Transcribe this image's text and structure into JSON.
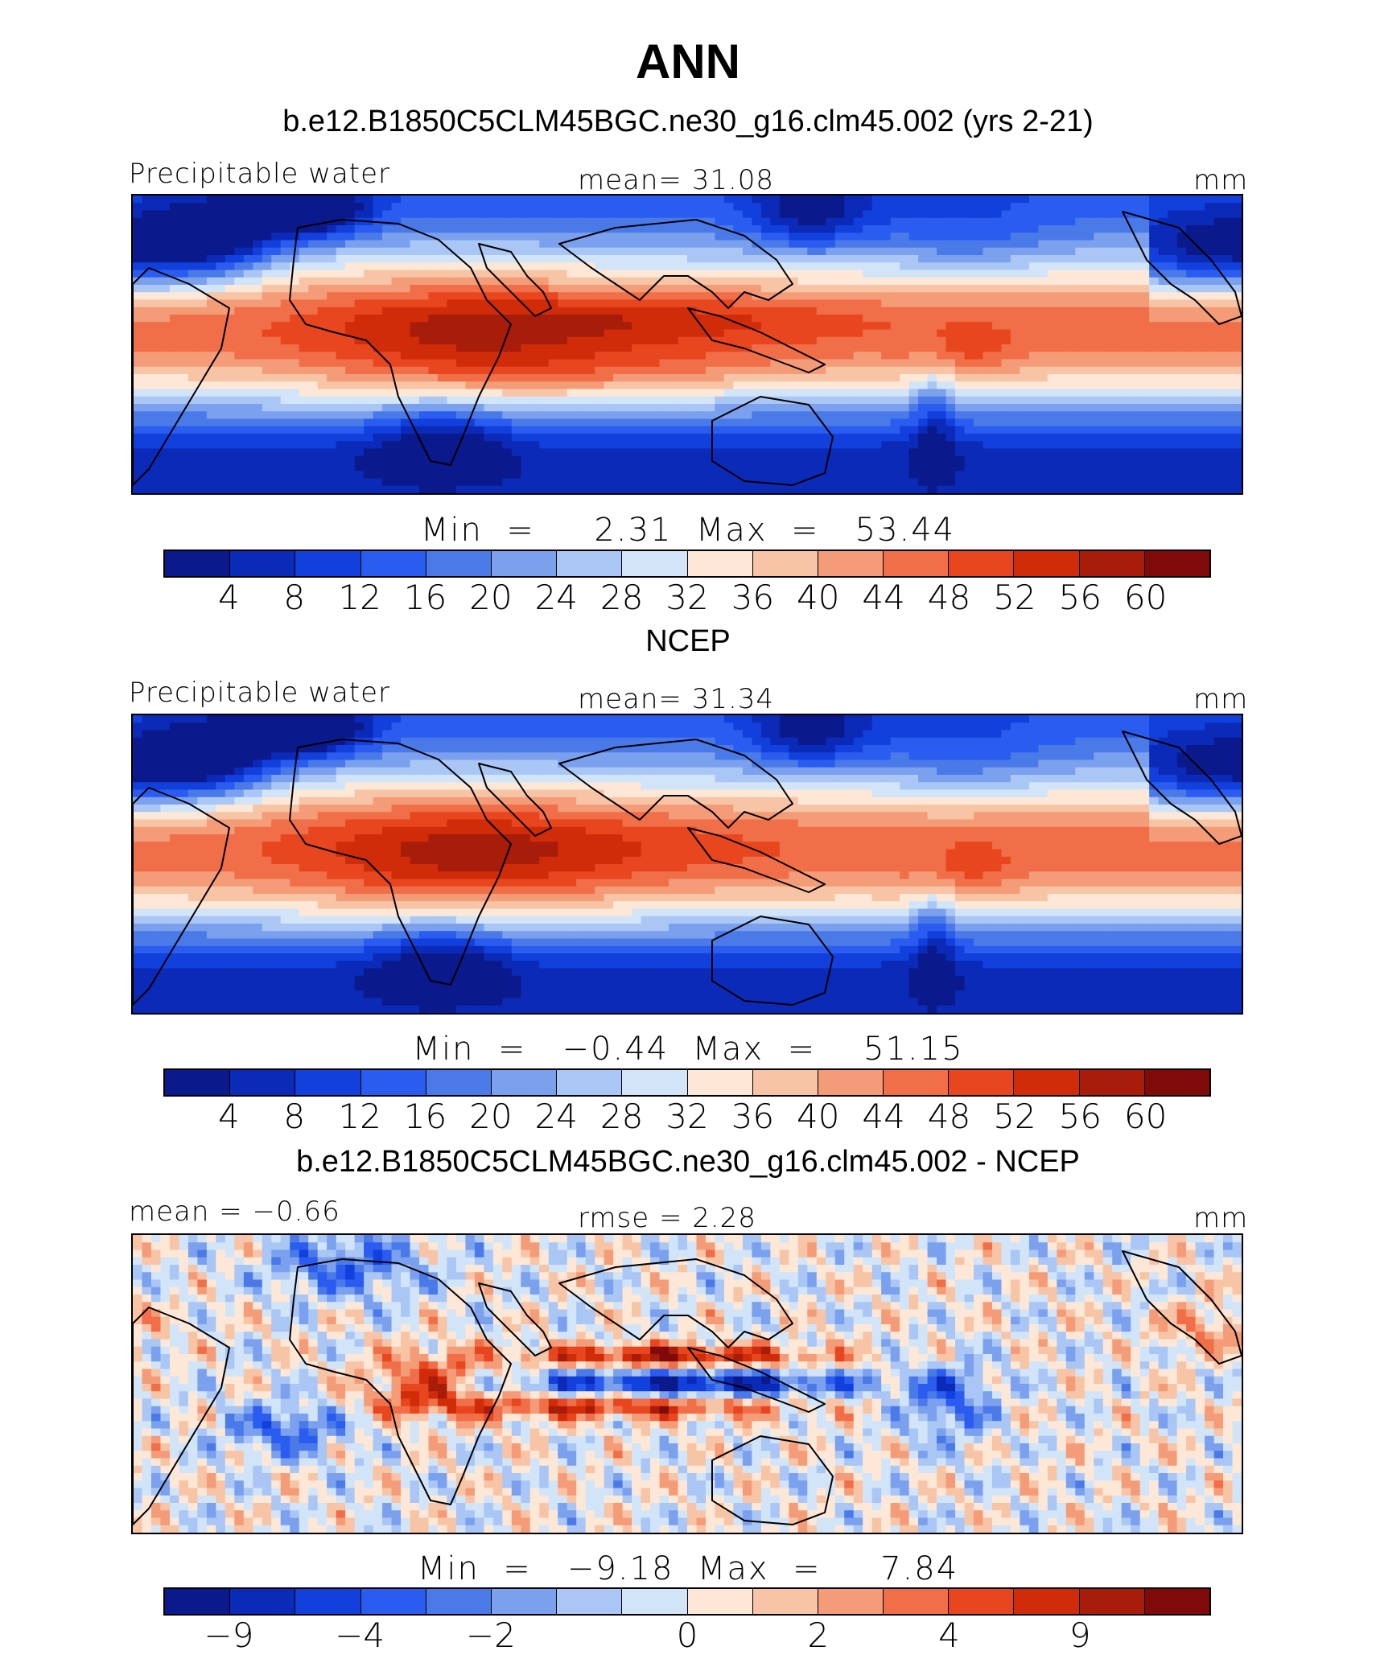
{
  "title": "ANN",
  "panels": [
    {
      "title": "b.e12.B1850C5CLM45BGC.ne30_g16.clm45.002 (yrs 2-21)",
      "left_label": "Precipitable  water",
      "center_label": "mean=   31.08",
      "right_label": "mm",
      "minmax": "Min  =     2.31  Max  =   53.44",
      "ticks": [
        "4",
        "8",
        "12",
        "16",
        "20",
        "24",
        "28",
        "32",
        "36",
        "40",
        "44",
        "48",
        "52",
        "56",
        "60"
      ],
      "field": "model"
    },
    {
      "title": "NCEP",
      "left_label": "Precipitable  water",
      "center_label": "mean=   31.34",
      "right_label": "mm",
      "minmax": "Min  =   −0.44  Max  =    51.15",
      "ticks": [
        "4",
        "8",
        "12",
        "16",
        "20",
        "24",
        "28",
        "32",
        "36",
        "40",
        "44",
        "48",
        "52",
        "56",
        "60"
      ],
      "field": "obs"
    },
    {
      "title": "b.e12.B1850C5CLM45BGC.ne30_g16.clm45.002 - NCEP",
      "left_label": "mean  =   −0.66",
      "center_label": "rmse  =     2.28",
      "right_label": "mm",
      "minmax": "Min  =   −9.18  Max  =     7.84",
      "ticks": [
        "−9",
        "−4",
        "−2",
        "0",
        "2",
        "4",
        "9"
      ],
      "field": "diff"
    }
  ],
  "colorbar_colors": [
    "#0a1a8c",
    "#0b2ab8",
    "#1240dc",
    "#2a5cf0",
    "#4a7ae8",
    "#7aa0ee",
    "#a9c6f4",
    "#d2e4f8",
    "#fde8d8",
    "#f8c4a6",
    "#f49c78",
    "#f06e48",
    "#e8461e",
    "#d02c0a",
    "#a81c0a",
    "#800a0a"
  ]
}
